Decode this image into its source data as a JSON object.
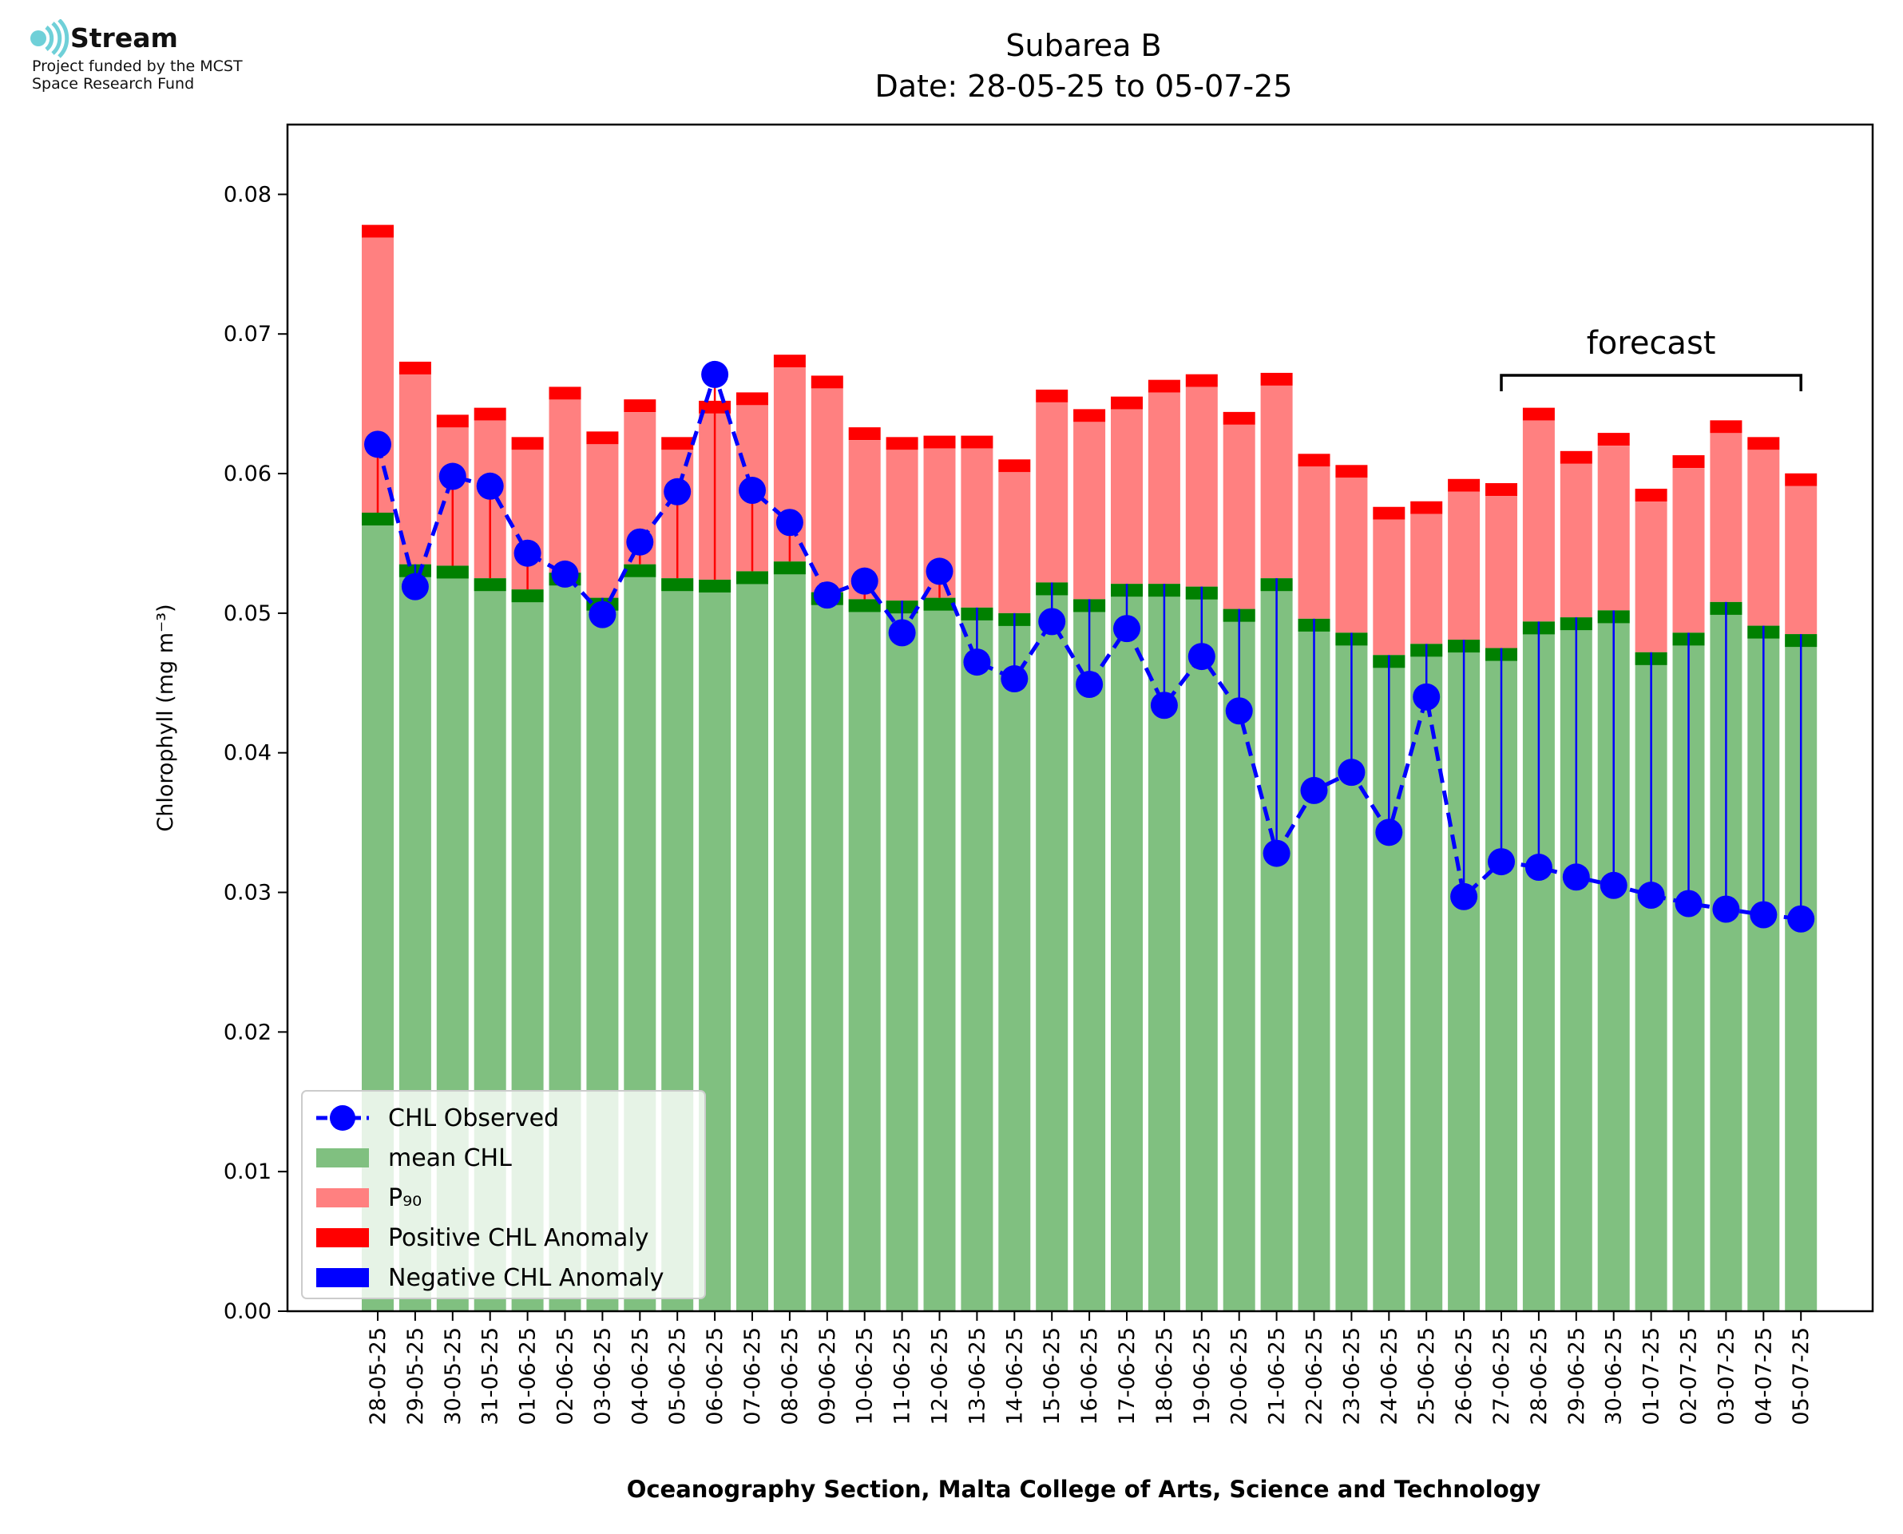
{
  "logo": {
    "name": "Stream",
    "line1": "Project funded by the MCST",
    "line2": "Space Research Fund"
  },
  "chart_data": {
    "type": "bar",
    "title": "Subarea B",
    "subtitle": "Date: 28-05-25 to 05-07-25",
    "xlabel": "Oceanography Section, Malta College of Arts, Science and Technology",
    "ylabel": "Chlorophyll (mg m⁻³)",
    "ylim": [
      0,
      0.085
    ],
    "yticks": [
      "0.00",
      "0.01",
      "0.02",
      "0.03",
      "0.04",
      "0.05",
      "0.06",
      "0.07",
      "0.08"
    ],
    "ytick_values": [
      0,
      0.01,
      0.02,
      0.03,
      0.04,
      0.05,
      0.06,
      0.07,
      0.08
    ],
    "categories": [
      "28-05-25",
      "29-05-25",
      "30-05-25",
      "31-05-25",
      "01-06-25",
      "02-06-25",
      "03-06-25",
      "04-06-25",
      "05-06-25",
      "06-06-25",
      "07-06-25",
      "08-06-25",
      "09-06-25",
      "10-06-25",
      "11-06-25",
      "12-06-25",
      "13-06-25",
      "14-06-25",
      "15-06-25",
      "16-06-25",
      "17-06-25",
      "18-06-25",
      "19-06-25",
      "20-06-25",
      "21-06-25",
      "22-06-25",
      "23-06-25",
      "24-06-25",
      "25-06-25",
      "26-06-25",
      "27-06-25",
      "28-06-25",
      "29-06-25",
      "30-06-25",
      "01-07-25",
      "02-07-25",
      "03-07-25",
      "04-07-25",
      "05-07-25"
    ],
    "series": [
      {
        "name": "CHL Observed",
        "color": "#0000ff",
        "style": "dashed line with circle markers",
        "values": [
          0.0621,
          0.0519,
          0.0598,
          0.0591,
          0.0543,
          0.0528,
          0.0499,
          0.0551,
          0.0587,
          0.0671,
          0.0588,
          0.0565,
          0.0513,
          0.0523,
          0.0486,
          0.053,
          0.0465,
          0.0453,
          0.0494,
          0.0449,
          0.0489,
          0.0434,
          0.0469,
          0.043,
          0.0328,
          0.0373,
          0.0386,
          0.0343,
          0.044,
          0.0297,
          0.0322,
          0.0318,
          0.0311,
          0.0305,
          0.0298,
          0.0292,
          0.0288,
          0.0284,
          0.0281
        ]
      },
      {
        "name": "mean CHL",
        "color": "#80c080",
        "values": [
          0.0572,
          0.0535,
          0.0534,
          0.0525,
          0.0517,
          0.0529,
          0.0511,
          0.0535,
          0.0525,
          0.0524,
          0.053,
          0.0537,
          0.0515,
          0.051,
          0.0509,
          0.0511,
          0.0504,
          0.05,
          0.0522,
          0.051,
          0.0521,
          0.0521,
          0.0519,
          0.0503,
          0.0525,
          0.0496,
          0.0486,
          0.047,
          0.0478,
          0.0481,
          0.0475,
          0.0494,
          0.0497,
          0.0502,
          0.0472,
          0.0486,
          0.0508,
          0.0491,
          0.0485
        ]
      },
      {
        "name": "P₉₀",
        "color": "#ff8080",
        "values": [
          0.0769,
          0.0671,
          0.0633,
          0.0638,
          0.0617,
          0.0653,
          0.0621,
          0.0644,
          0.0617,
          0.0643,
          0.0649,
          0.0676,
          0.0661,
          0.0624,
          0.0617,
          0.0618,
          0.0618,
          0.0601,
          0.0651,
          0.0637,
          0.0646,
          0.0658,
          0.0662,
          0.0635,
          0.0663,
          0.0605,
          0.0597,
          0.0567,
          0.0571,
          0.0587,
          0.0584,
          0.0638,
          0.0607,
          0.062,
          0.058,
          0.0604,
          0.0629,
          0.0617,
          0.0591
        ]
      }
    ],
    "legend": [
      {
        "label": "CHL Observed",
        "kind": "line-marker",
        "color": "#0000ff"
      },
      {
        "label": "mean CHL",
        "kind": "patch",
        "color": "#80c080"
      },
      {
        "label": "P₉₀",
        "kind": "patch",
        "color": "#ff8080"
      },
      {
        "label": "Positive CHL Anomaly",
        "kind": "patch",
        "color": "#ff0000"
      },
      {
        "label": "Negative CHL Anomaly",
        "kind": "patch",
        "color": "#0000ff"
      }
    ],
    "legend_position": "lower-left",
    "annotation": {
      "text": "forecast",
      "from": "27-06-25",
      "to": "05-07-25"
    },
    "colors": {
      "mean_cap": "#008000",
      "p90_cap": "#ff0000",
      "positive_anomaly": "#ff0000",
      "negative_anomaly": "#0000ff"
    },
    "grid": false
  }
}
